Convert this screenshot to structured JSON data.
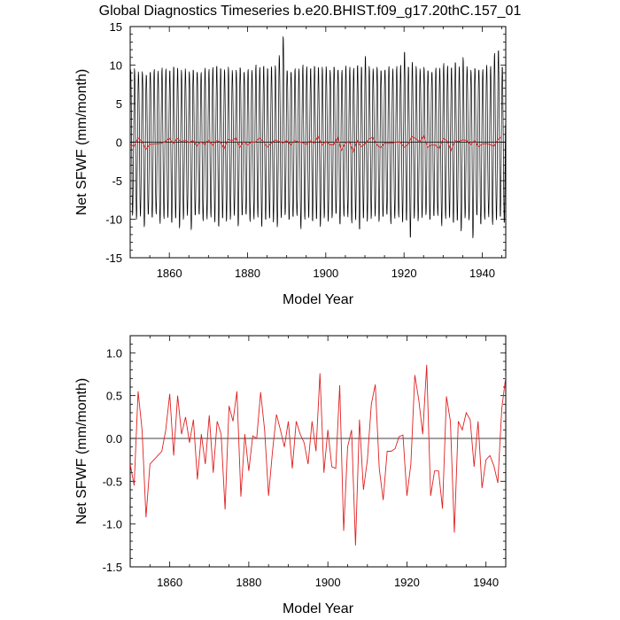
{
  "figure": {
    "title": "Global Diagnostics Timeseries b.e20.BHIST.f09_g17.20thC.157_01"
  },
  "chart_data": [
    {
      "type": "line",
      "title": "Global Diagnostics Timeseries b.e20.BHIST.f09_g17.20thC.157_01",
      "xlabel": "Model Year",
      "ylabel": "Net SFWF (mm/month)",
      "xlim": [
        1850,
        1946
      ],
      "ylim": [
        -15,
        15
      ],
      "x_ticks": [
        1860,
        1880,
        1900,
        1920,
        1940
      ],
      "y_ticks": [
        -15,
        -10,
        -5,
        0,
        5,
        10,
        15
      ],
      "reference_line": 0,
      "grid": false,
      "series": [
        {
          "color": "#000000",
          "note_monthly": true,
          "start_year": 1850,
          "months_per_year": 12,
          "annual_max": [
            9.4,
            9.6,
            9.3,
            9.5,
            9.2,
            9.6,
            9.8,
            9.4,
            9.7,
            9.5,
            9.3,
            9.8,
            9.6,
            9.4,
            9.7,
            9.5,
            9.9,
            9.6,
            9.4,
            9.8,
            9.5,
            9.7,
            9.9,
            9.6,
            9.4,
            9.8,
            9.5,
            9.7,
            10.2,
            9.6,
            9.8,
            9.5,
            10.1,
            9.7,
            9.9,
            9.6,
            9.8,
            10.0,
            11.5,
            14.2,
            9.8,
            9.6,
            9.9,
            9.7,
            10.1,
            9.8,
            9.6,
            9.9,
            9.7,
            9.8,
            10.0,
            9.7,
            10.3,
            9.9,
            9.7,
            10.1,
            9.8,
            9.6,
            10.0,
            9.8,
            11.2,
            9.9,
            9.7,
            10.1,
            9.8,
            9.9,
            10.2,
            9.7,
            9.9,
            10.0,
            11.8,
            9.8,
            10.4,
            9.9,
            9.7,
            10.1,
            9.8,
            9.6,
            10.0,
            9.8,
            10.3,
            9.9,
            9.7,
            10.4,
            9.8,
            11.1,
            10.0,
            9.7,
            10.1,
            9.9,
            9.8,
            10.2,
            9.9,
            11.6,
            12.0,
            9.8
          ],
          "annual_min": [
            -9.5,
            -10.1,
            -9.8,
            -11.4,
            -9.9,
            -10.3,
            -9.7,
            -10.8,
            -10.0,
            -9.8,
            -10.5,
            -9.9,
            -11.2,
            -10.1,
            -9.7,
            -11.8,
            -10.0,
            -9.9,
            -10.6,
            -10.2,
            -9.8,
            -10.4,
            -11.0,
            -9.9,
            -10.3,
            -10.1,
            -9.7,
            -11.3,
            -10.0,
            -9.9,
            -10.7,
            -10.2,
            -9.8,
            -11.0,
            -10.1,
            -9.9,
            -10.4,
            -11.1,
            -10.0,
            -9.8,
            -10.6,
            -10.2,
            -9.9,
            -11.5,
            -10.1,
            -9.8,
            -10.3,
            -10.0,
            -11.0,
            -9.9,
            -10.5,
            -10.2,
            -9.8,
            -11.2,
            -10.0,
            -9.9,
            -10.6,
            -10.1,
            -11.4,
            -9.9,
            -10.3,
            -10.0,
            -9.8,
            -10.7,
            -10.2,
            -9.9,
            -11.0,
            -10.1,
            -9.8,
            -10.4,
            -10.2,
            -12.5,
            -9.9,
            -10.3,
            -10.0,
            -9.8,
            -10.6,
            -10.1,
            -9.9,
            -11.1,
            -10.0,
            -9.8,
            -10.5,
            -10.2,
            -11.6,
            -9.9,
            -10.3,
            -12.9,
            -10.0,
            -11.2,
            -10.4,
            -9.9,
            -10.8,
            -10.1,
            -9.7,
            -10.5
          ]
        },
        {
          "color": "#e02020",
          "note_annual": true,
          "x": [
            1850,
            1851,
            1852,
            1853,
            1854,
            1855,
            1856,
            1857,
            1858,
            1859,
            1860,
            1861,
            1862,
            1863,
            1864,
            1865,
            1866,
            1867,
            1868,
            1869,
            1870,
            1871,
            1872,
            1873,
            1874,
            1875,
            1876,
            1877,
            1878,
            1879,
            1880,
            1881,
            1882,
            1883,
            1884,
            1885,
            1886,
            1887,
            1888,
            1889,
            1890,
            1891,
            1892,
            1893,
            1894,
            1895,
            1896,
            1897,
            1898,
            1899,
            1900,
            1901,
            1902,
            1903,
            1904,
            1905,
            1906,
            1907,
            1908,
            1909,
            1910,
            1911,
            1912,
            1913,
            1914,
            1915,
            1916,
            1917,
            1918,
            1919,
            1920,
            1921,
            1922,
            1923,
            1924,
            1925,
            1926,
            1927,
            1928,
            1929,
            1930,
            1931,
            1932,
            1933,
            1934,
            1935,
            1936,
            1937,
            1938,
            1939,
            1940,
            1941,
            1942,
            1943,
            1944,
            1945
          ],
          "values": [
            -0.3,
            -0.55,
            0.55,
            0.1,
            -0.92,
            -0.3,
            -0.25,
            -0.2,
            -0.15,
            0.1,
            0.52,
            -0.2,
            0.5,
            0.05,
            0.25,
            -0.05,
            0.22,
            -0.48,
            0.05,
            -0.3,
            0.27,
            -0.4,
            0.2,
            0.05,
            -0.83,
            0.38,
            0.2,
            0.55,
            -0.68,
            0.05,
            -0.38,
            0.03,
            0.0,
            0.54,
            0.1,
            -0.67,
            -0.15,
            0.28,
            0.1,
            -0.1,
            0.2,
            -0.35,
            0.2,
            0.05,
            -0.05,
            -0.3,
            0.2,
            -0.15,
            0.76,
            -0.4,
            0.1,
            -0.33,
            -0.35,
            0.62,
            -1.08,
            -0.1,
            0.1,
            -1.25,
            0.22,
            -0.6,
            -0.25,
            0.4,
            0.63,
            -0.35,
            -0.72,
            -0.15,
            -0.15,
            -0.12,
            0.02,
            0.04,
            -0.67,
            -0.3,
            0.74,
            0.45,
            0.05,
            0.86,
            -0.67,
            -0.38,
            -0.38,
            -0.82,
            0.49,
            0.2,
            -1.1,
            0.2,
            0.1,
            0.3,
            0.22,
            -0.33,
            0.2,
            -0.58,
            -0.25,
            -0.2,
            -0.32,
            -0.52,
            0.35,
            0.72
          ]
        }
      ]
    },
    {
      "type": "line",
      "xlabel": "Model Year",
      "ylabel": "Net SFWF (mm/month)",
      "xlim": [
        1850,
        1945
      ],
      "ylim": [
        -1.5,
        1.2
      ],
      "x_ticks": [
        1860,
        1880,
        1900,
        1920,
        1940
      ],
      "y_ticks": [
        -1.5,
        -1.0,
        -0.5,
        0.0,
        0.5,
        1.0
      ],
      "y_tick_labels": [
        "-1.5",
        "-1.0",
        "-0.5",
        "0.0",
        "0.5",
        "1.0"
      ],
      "reference_line": 0,
      "grid": false,
      "series": [
        {
          "color": "#e02020",
          "x": [
            1850,
            1851,
            1852,
            1853,
            1854,
            1855,
            1856,
            1857,
            1858,
            1859,
            1860,
            1861,
            1862,
            1863,
            1864,
            1865,
            1866,
            1867,
            1868,
            1869,
            1870,
            1871,
            1872,
            1873,
            1874,
            1875,
            1876,
            1877,
            1878,
            1879,
            1880,
            1881,
            1882,
            1883,
            1884,
            1885,
            1886,
            1887,
            1888,
            1889,
            1890,
            1891,
            1892,
            1893,
            1894,
            1895,
            1896,
            1897,
            1898,
            1899,
            1900,
            1901,
            1902,
            1903,
            1904,
            1905,
            1906,
            1907,
            1908,
            1909,
            1910,
            1911,
            1912,
            1913,
            1914,
            1915,
            1916,
            1917,
            1918,
            1919,
            1920,
            1921,
            1922,
            1923,
            1924,
            1925,
            1926,
            1927,
            1928,
            1929,
            1930,
            1931,
            1932,
            1933,
            1934,
            1935,
            1936,
            1937,
            1938,
            1939,
            1940,
            1941,
            1942,
            1943,
            1944,
            1945
          ],
          "values": [
            -0.3,
            -0.55,
            0.55,
            0.1,
            -0.92,
            -0.3,
            -0.25,
            -0.2,
            -0.15,
            0.1,
            0.52,
            -0.2,
            0.5,
            0.05,
            0.25,
            -0.05,
            0.22,
            -0.48,
            0.05,
            -0.3,
            0.27,
            -0.4,
            0.2,
            0.05,
            -0.83,
            0.38,
            0.2,
            0.55,
            -0.68,
            0.05,
            -0.38,
            0.03,
            0.0,
            0.54,
            0.1,
            -0.67,
            -0.15,
            0.28,
            0.1,
            -0.1,
            0.2,
            -0.35,
            0.2,
            0.05,
            -0.05,
            -0.3,
            0.2,
            -0.15,
            0.76,
            -0.4,
            0.1,
            -0.33,
            -0.35,
            0.62,
            -1.08,
            -0.1,
            0.1,
            -1.25,
            0.22,
            -0.6,
            -0.25,
            0.4,
            0.63,
            -0.35,
            -0.72,
            -0.15,
            -0.15,
            -0.12,
            0.02,
            0.04,
            -0.67,
            -0.3,
            0.74,
            0.45,
            0.05,
            0.86,
            -0.67,
            -0.38,
            -0.38,
            -0.82,
            0.49,
            0.2,
            -1.1,
            0.2,
            0.1,
            0.3,
            0.22,
            -0.33,
            0.2,
            -0.58,
            -0.25,
            -0.2,
            -0.32,
            -0.52,
            0.35,
            0.72
          ]
        }
      ]
    }
  ]
}
